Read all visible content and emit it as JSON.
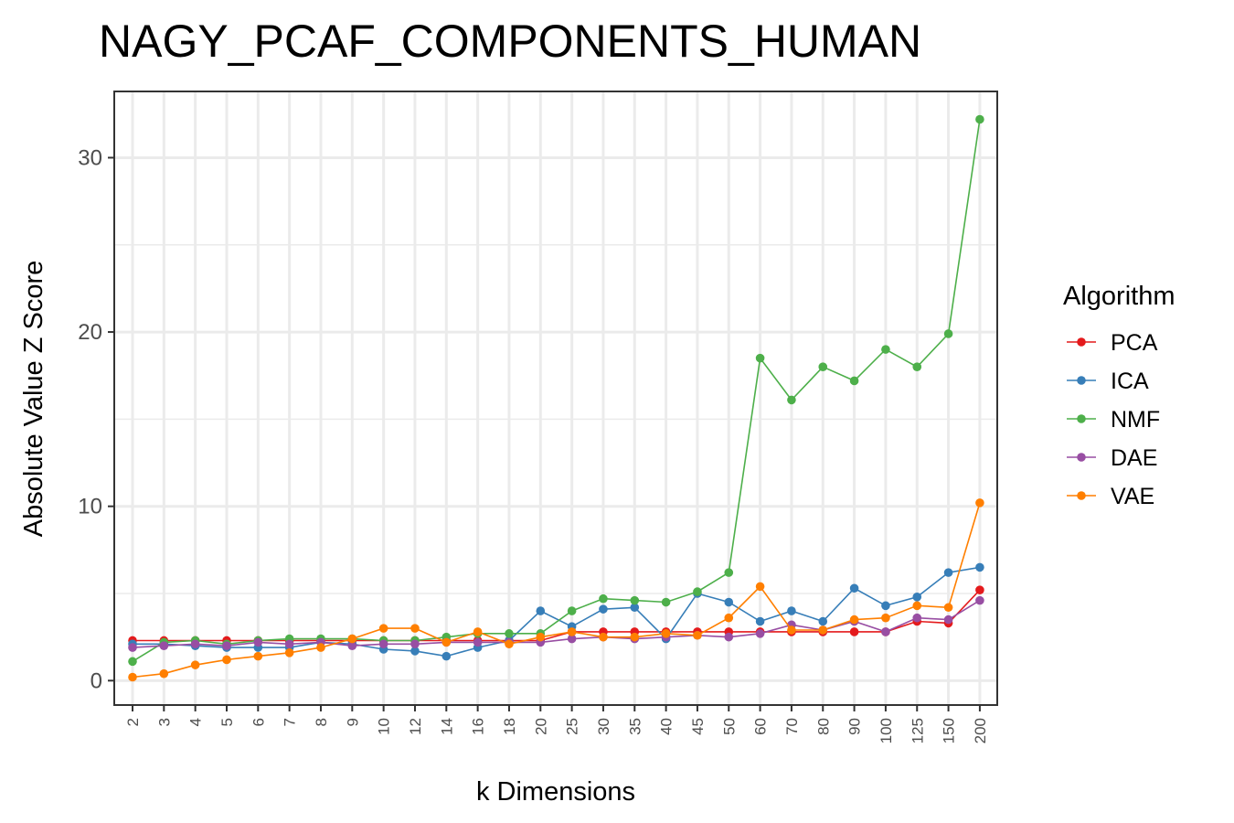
{
  "chart_data": {
    "type": "line",
    "title": "NAGY_PCAF_COMPONENTS_HUMAN",
    "xlabel": "k Dimensions",
    "ylabel": "Absolute Value Z Score",
    "ylim": [
      -1.4,
      33.8
    ],
    "yticks": [
      0,
      10,
      20,
      30
    ],
    "grid": true,
    "legend_title": "Algorithm",
    "legend_position": "right",
    "categories": [
      "2",
      "3",
      "4",
      "5",
      "6",
      "7",
      "8",
      "9",
      "10",
      "12",
      "14",
      "16",
      "18",
      "20",
      "25",
      "30",
      "35",
      "40",
      "45",
      "50",
      "60",
      "70",
      "80",
      "90",
      "100",
      "125",
      "150",
      "200"
    ],
    "series": [
      {
        "name": "PCA",
        "color": "#e41a1c",
        "values": [
          2.3,
          2.3,
          2.3,
          2.3,
          2.3,
          2.3,
          2.3,
          2.3,
          2.3,
          2.3,
          2.3,
          2.3,
          2.3,
          2.3,
          2.8,
          2.8,
          2.8,
          2.8,
          2.8,
          2.8,
          2.8,
          2.8,
          2.8,
          2.8,
          2.8,
          3.4,
          3.3,
          5.2
        ]
      },
      {
        "name": "ICA",
        "color": "#377eb8",
        "values": [
          2.1,
          2.1,
          2.0,
          1.9,
          1.9,
          1.9,
          2.2,
          2.1,
          1.8,
          1.7,
          1.4,
          1.9,
          2.3,
          4.0,
          3.1,
          4.1,
          4.2,
          2.4,
          5.0,
          4.5,
          3.4,
          4.0,
          3.4,
          5.3,
          4.3,
          4.8,
          6.2,
          6.5
        ]
      },
      {
        "name": "NMF",
        "color": "#4daf4a",
        "values": [
          1.1,
          2.2,
          2.3,
          2.1,
          2.3,
          2.4,
          2.4,
          2.4,
          2.3,
          2.3,
          2.5,
          2.7,
          2.7,
          2.7,
          4.0,
          4.7,
          4.6,
          4.5,
          5.1,
          6.2,
          18.5,
          16.1,
          18.0,
          17.2,
          19.0,
          18.0,
          19.9,
          32.2
        ]
      },
      {
        "name": "DAE",
        "color": "#984ea3",
        "values": [
          1.9,
          2.0,
          2.1,
          2.0,
          2.2,
          2.1,
          2.2,
          2.0,
          2.1,
          2.1,
          2.2,
          2.2,
          2.2,
          2.2,
          2.4,
          2.5,
          2.4,
          2.5,
          2.6,
          2.5,
          2.7,
          3.2,
          2.9,
          3.4,
          2.8,
          3.6,
          3.5,
          4.6
        ]
      },
      {
        "name": "VAE",
        "color": "#ff7f00",
        "values": [
          0.2,
          0.4,
          0.9,
          1.2,
          1.4,
          1.6,
          1.9,
          2.4,
          3.0,
          3.0,
          2.2,
          2.8,
          2.1,
          2.5,
          2.8,
          2.5,
          2.5,
          2.7,
          2.6,
          3.6,
          5.4,
          2.9,
          2.9,
          3.5,
          3.6,
          4.3,
          4.2,
          10.2
        ]
      }
    ]
  }
}
